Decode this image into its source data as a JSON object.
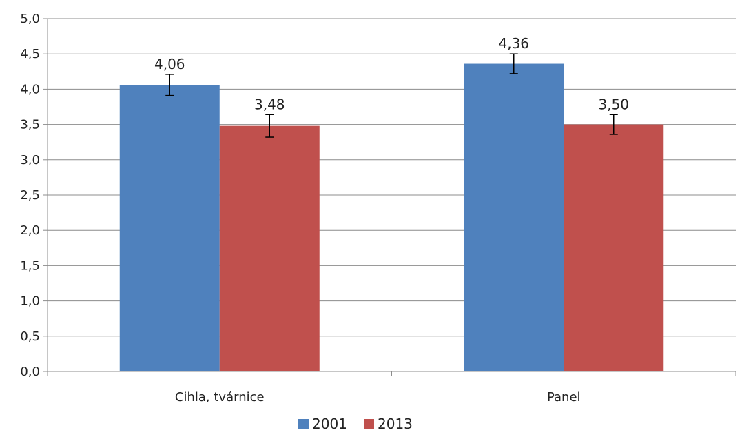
{
  "chart_data": {
    "type": "bar",
    "categories": [
      "Cihla, tvárnice",
      "Panel"
    ],
    "series": [
      {
        "name": "2001",
        "color": "#4f81bd",
        "values": [
          4.06,
          4.36
        ],
        "labels": [
          "4,06",
          "4,36"
        ],
        "error": [
          0.15,
          0.14
        ]
      },
      {
        "name": "2013",
        "color": "#c0504d",
        "values": [
          3.48,
          3.5
        ],
        "labels": [
          "3,48",
          "3,50"
        ],
        "error": [
          0.16,
          0.14
        ]
      }
    ],
    "ylim": [
      0,
      5
    ],
    "yticks": [
      "0,0",
      "0,5",
      "1,0",
      "1,5",
      "2,0",
      "2,5",
      "3,0",
      "3,5",
      "4,0",
      "4,5",
      "5,0"
    ],
    "grid": true,
    "legend_position": "bottom",
    "title": "",
    "xlabel": "",
    "ylabel": ""
  }
}
